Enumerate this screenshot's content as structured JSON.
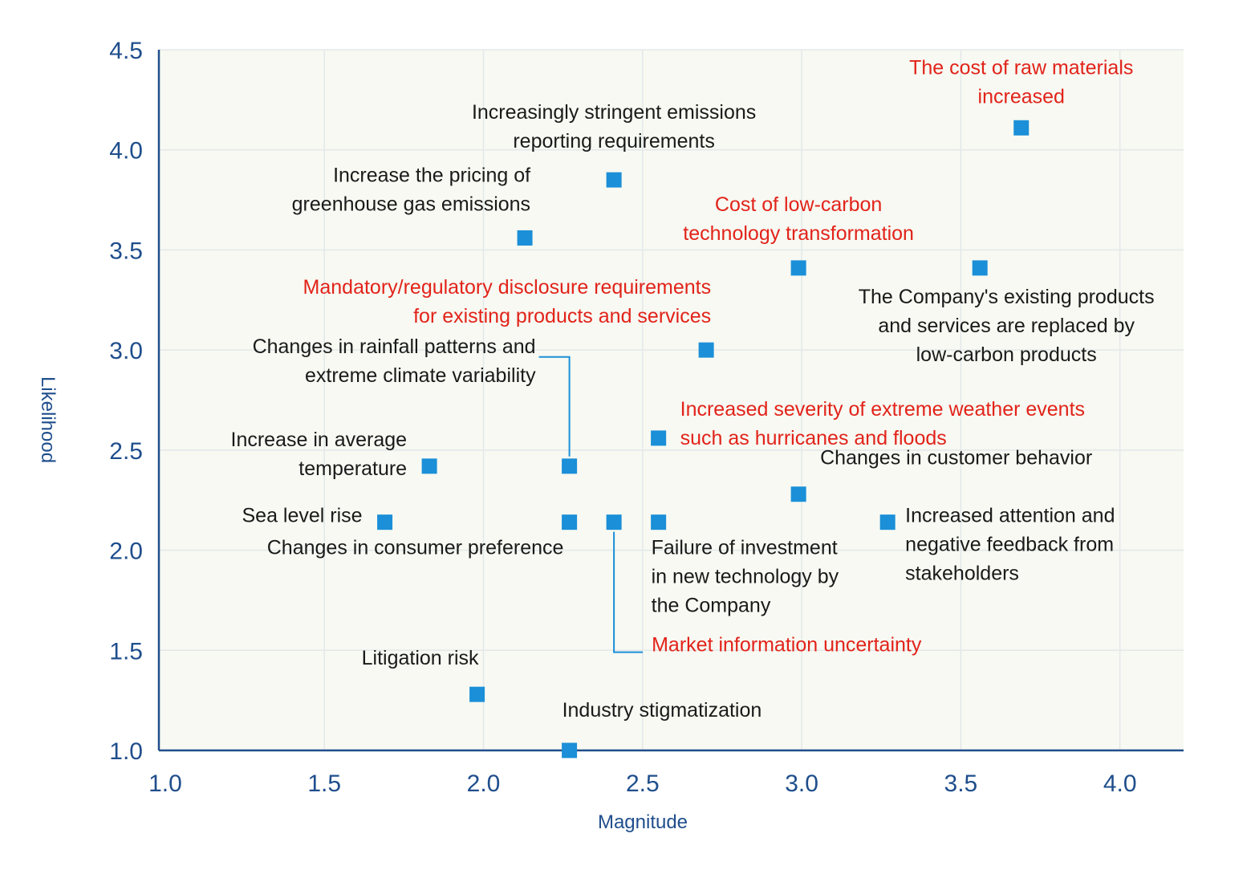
{
  "chart_data": {
    "type": "scatter",
    "xlabel": "Magnitude",
    "ylabel": "Likelihood",
    "xlim": [
      0.98,
      4.2
    ],
    "ylim": [
      1.0,
      4.5
    ],
    "xticks": [
      "1.0",
      "1.5",
      "2.0",
      "2.5",
      "3.0",
      "3.5",
      "4.0"
    ],
    "yticks": [
      "1.0",
      "1.5",
      "2.0",
      "2.5",
      "3.0",
      "3.5",
      "4.0",
      "4.5"
    ],
    "grid": true,
    "marker": "square",
    "colors": {
      "marker": "#1b8fd8",
      "plot_background": "#f7f9f2",
      "grid": "#e3e8ea",
      "axis": "#1f4e8c",
      "label_black": "#1a1a1a",
      "label_red": "#e2231a"
    },
    "points": [
      {
        "x": 3.69,
        "y": 4.11,
        "label_lines": [
          "The cost of raw materials",
          "increased"
        ],
        "color": "red",
        "anchor": "middle",
        "placement": "above"
      },
      {
        "x": 2.41,
        "y": 3.85,
        "label_lines": [
          "Increasingly stringent emissions",
          "reporting requirements"
        ],
        "color": "black",
        "anchor": "middle",
        "placement": "above"
      },
      {
        "x": 2.13,
        "y": 3.56,
        "label_lines": [
          "Increase the pricing of",
          "greenhouse gas emissions"
        ],
        "color": "black",
        "anchor": "end",
        "placement": "above-left"
      },
      {
        "x": 2.99,
        "y": 3.41,
        "label_lines": [
          "Cost of low-carbon",
          "technology transformation"
        ],
        "color": "red",
        "anchor": "middle",
        "placement": "above"
      },
      {
        "x": 3.56,
        "y": 3.41,
        "label_lines": [
          "The Company's existing products",
          "and services are replaced by",
          "low-carbon products"
        ],
        "color": "black",
        "anchor": "middle",
        "placement": "below"
      },
      {
        "x": 2.7,
        "y": 3.0,
        "label_lines": [
          "Mandatory/regulatory disclosure requirements",
          "for existing products and services"
        ],
        "color": "red",
        "anchor": "end",
        "placement": "above-left"
      },
      {
        "x": 2.27,
        "y": 2.42,
        "label_lines": [
          "Changes in rainfall patterns and",
          "extreme climate variability"
        ],
        "color": "black",
        "anchor": "end",
        "placement": "leader-above-left"
      },
      {
        "x": 2.55,
        "y": 2.56,
        "label_lines": [
          "Increased severity of extreme weather events",
          "such as hurricanes and floods"
        ],
        "color": "red",
        "anchor": "start",
        "placement": "right"
      },
      {
        "x": 1.83,
        "y": 2.42,
        "label_lines": [
          "Increase in average",
          "temperature"
        ],
        "color": "black",
        "anchor": "end",
        "placement": "left"
      },
      {
        "x": 2.99,
        "y": 2.28,
        "label_lines": [
          "Changes in customer behavior"
        ],
        "color": "black",
        "anchor": "start",
        "placement": "right"
      },
      {
        "x": 1.69,
        "y": 2.14,
        "label_lines": [
          "Sea level rise"
        ],
        "color": "black",
        "anchor": "end",
        "placement": "left"
      },
      {
        "x": 2.27,
        "y": 2.14,
        "label_lines": [
          "Changes in consumer preference"
        ],
        "color": "black",
        "anchor": "middle",
        "placement": "below-left"
      },
      {
        "x": 2.41,
        "y": 2.14,
        "label_lines": [
          "Market information uncertainty"
        ],
        "color": "red",
        "anchor": "start",
        "placement": "leader-below-right"
      },
      {
        "x": 2.55,
        "y": 2.14,
        "label_lines": [
          "Failure of investment",
          "in new technology by",
          "the Company"
        ],
        "color": "black",
        "anchor": "start",
        "placement": "below"
      },
      {
        "x": 3.27,
        "y": 2.14,
        "label_lines": [
          "Increased attention and",
          "negative feedback from",
          "stakeholders"
        ],
        "color": "black",
        "anchor": "start",
        "placement": "right"
      },
      {
        "x": 1.98,
        "y": 1.28,
        "label_lines": [
          "Litigation risk"
        ],
        "color": "black",
        "anchor": "middle",
        "placement": "above-left"
      },
      {
        "x": 2.27,
        "y": 1.0,
        "label_lines": [
          "Industry stigmatization"
        ],
        "color": "black",
        "anchor": "start",
        "placement": "above-right"
      }
    ]
  }
}
